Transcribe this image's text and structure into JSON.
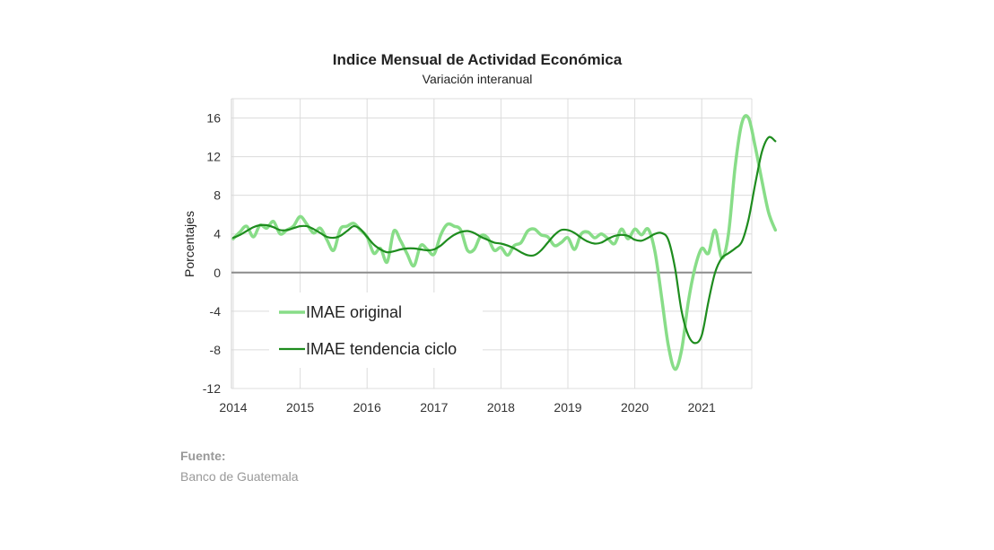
{
  "chart_data": {
    "type": "line",
    "title": "Indice Mensual de Actividad Económica",
    "subtitle": "Variación interanual",
    "ylabel": "Porcentajes",
    "xlabel": "",
    "ylim": [
      -12,
      18
    ],
    "xlim": [
      2014.0,
      2021.75
    ],
    "yticks": [
      16,
      12,
      8,
      4,
      0,
      -4,
      -8,
      -12
    ],
    "xticks": [
      "2014",
      "2015",
      "2016",
      "2017",
      "2018",
      "2019",
      "2020",
      "2021"
    ],
    "grid": true,
    "legend_position": "bottom-left",
    "series": [
      {
        "name": "IMAE original",
        "color": "#88dd88",
        "points": [
          [
            2014.0,
            3.5
          ],
          [
            2014.1,
            4.2
          ],
          [
            2014.2,
            4.8
          ],
          [
            2014.3,
            3.7
          ],
          [
            2014.4,
            4.9
          ],
          [
            2014.5,
            4.6
          ],
          [
            2014.6,
            5.3
          ],
          [
            2014.7,
            4.0
          ],
          [
            2014.8,
            4.4
          ],
          [
            2014.9,
            4.8
          ],
          [
            2015.0,
            5.8
          ],
          [
            2015.1,
            5.0
          ],
          [
            2015.2,
            4.1
          ],
          [
            2015.3,
            4.6
          ],
          [
            2015.4,
            3.4
          ],
          [
            2015.5,
            2.3
          ],
          [
            2015.6,
            4.5
          ],
          [
            2015.7,
            4.8
          ],
          [
            2015.8,
            5.1
          ],
          [
            2015.9,
            4.4
          ],
          [
            2016.0,
            3.7
          ],
          [
            2016.1,
            2.0
          ],
          [
            2016.2,
            2.5
          ],
          [
            2016.3,
            1.1
          ],
          [
            2016.4,
            4.3
          ],
          [
            2016.5,
            3.3
          ],
          [
            2016.6,
            1.9
          ],
          [
            2016.7,
            0.7
          ],
          [
            2016.8,
            2.8
          ],
          [
            2016.9,
            2.4
          ],
          [
            2017.0,
            1.9
          ],
          [
            2017.1,
            3.9
          ],
          [
            2017.2,
            5.0
          ],
          [
            2017.3,
            4.8
          ],
          [
            2017.4,
            4.4
          ],
          [
            2017.5,
            2.3
          ],
          [
            2017.6,
            2.4
          ],
          [
            2017.7,
            3.8
          ],
          [
            2017.8,
            3.6
          ],
          [
            2017.9,
            2.3
          ],
          [
            2018.0,
            2.6
          ],
          [
            2018.1,
            1.8
          ],
          [
            2018.2,
            2.8
          ],
          [
            2018.3,
            3.1
          ],
          [
            2018.4,
            4.3
          ],
          [
            2018.5,
            4.5
          ],
          [
            2018.6,
            3.9
          ],
          [
            2018.7,
            3.7
          ],
          [
            2018.8,
            2.8
          ],
          [
            2018.9,
            3.1
          ],
          [
            2019.0,
            3.6
          ],
          [
            2019.1,
            2.4
          ],
          [
            2019.2,
            4.0
          ],
          [
            2019.3,
            4.2
          ],
          [
            2019.4,
            3.6
          ],
          [
            2019.5,
            4.0
          ],
          [
            2019.6,
            3.5
          ],
          [
            2019.7,
            3.0
          ],
          [
            2019.8,
            4.5
          ],
          [
            2019.9,
            3.5
          ],
          [
            2020.0,
            4.5
          ],
          [
            2020.1,
            3.9
          ],
          [
            2020.2,
            4.5
          ],
          [
            2020.3,
            2.2
          ],
          [
            2020.4,
            -2.5
          ],
          [
            2020.5,
            -7.5
          ],
          [
            2020.6,
            -10.0
          ],
          [
            2020.7,
            -8.0
          ],
          [
            2020.8,
            -3.0
          ],
          [
            2020.9,
            0.5
          ],
          [
            2021.0,
            2.5
          ],
          [
            2021.1,
            2.0
          ],
          [
            2021.2,
            4.4
          ],
          [
            2021.3,
            1.5
          ],
          [
            2021.4,
            4.0
          ],
          [
            2021.5,
            11.0
          ],
          [
            2021.6,
            15.5
          ],
          [
            2021.7,
            16.0
          ],
          [
            2021.8,
            13.0
          ],
          [
            2021.9,
            9.5
          ],
          [
            2022.0,
            6.2
          ],
          [
            2022.1,
            4.4
          ]
        ]
      },
      {
        "name": "IMAE tendencia ciclo",
        "color": "#1e8c1e",
        "points": [
          [
            2014.0,
            3.6
          ],
          [
            2014.1,
            3.9
          ],
          [
            2014.2,
            4.3
          ],
          [
            2014.3,
            4.7
          ],
          [
            2014.4,
            4.9
          ],
          [
            2014.5,
            4.9
          ],
          [
            2014.6,
            4.7
          ],
          [
            2014.7,
            4.4
          ],
          [
            2014.8,
            4.4
          ],
          [
            2014.9,
            4.6
          ],
          [
            2015.0,
            4.8
          ],
          [
            2015.1,
            4.8
          ],
          [
            2015.2,
            4.5
          ],
          [
            2015.3,
            4.1
          ],
          [
            2015.4,
            3.7
          ],
          [
            2015.5,
            3.6
          ],
          [
            2015.6,
            3.8
          ],
          [
            2015.7,
            4.3
          ],
          [
            2015.8,
            4.8
          ],
          [
            2015.9,
            4.5
          ],
          [
            2016.0,
            3.7
          ],
          [
            2016.1,
            2.9
          ],
          [
            2016.2,
            2.4
          ],
          [
            2016.3,
            2.1
          ],
          [
            2016.4,
            2.2
          ],
          [
            2016.5,
            2.4
          ],
          [
            2016.6,
            2.5
          ],
          [
            2016.7,
            2.5
          ],
          [
            2016.8,
            2.4
          ],
          [
            2016.9,
            2.3
          ],
          [
            2017.0,
            2.4
          ],
          [
            2017.1,
            2.8
          ],
          [
            2017.2,
            3.4
          ],
          [
            2017.3,
            3.9
          ],
          [
            2017.4,
            4.2
          ],
          [
            2017.5,
            4.3
          ],
          [
            2017.6,
            4.1
          ],
          [
            2017.7,
            3.7
          ],
          [
            2017.8,
            3.4
          ],
          [
            2017.9,
            3.1
          ],
          [
            2018.0,
            3.0
          ],
          [
            2018.1,
            2.8
          ],
          [
            2018.2,
            2.5
          ],
          [
            2018.3,
            2.1
          ],
          [
            2018.4,
            1.8
          ],
          [
            2018.5,
            1.8
          ],
          [
            2018.6,
            2.3
          ],
          [
            2018.7,
            3.1
          ],
          [
            2018.8,
            3.9
          ],
          [
            2018.9,
            4.4
          ],
          [
            2019.0,
            4.4
          ],
          [
            2019.1,
            4.1
          ],
          [
            2019.2,
            3.6
          ],
          [
            2019.3,
            3.2
          ],
          [
            2019.4,
            3.0
          ],
          [
            2019.5,
            3.1
          ],
          [
            2019.6,
            3.5
          ],
          [
            2019.7,
            3.8
          ],
          [
            2019.8,
            3.9
          ],
          [
            2019.9,
            3.8
          ],
          [
            2020.0,
            3.4
          ],
          [
            2020.1,
            3.3
          ],
          [
            2020.2,
            3.6
          ],
          [
            2020.3,
            4.0
          ],
          [
            2020.4,
            4.1
          ],
          [
            2020.5,
            3.4
          ],
          [
            2020.6,
            0.5
          ],
          [
            2020.7,
            -4.0
          ],
          [
            2020.8,
            -6.5
          ],
          [
            2020.9,
            -7.3
          ],
          [
            2021.0,
            -6.5
          ],
          [
            2021.1,
            -3.0
          ],
          [
            2021.2,
            0.0
          ],
          [
            2021.3,
            1.5
          ],
          [
            2021.4,
            2.0
          ],
          [
            2021.5,
            2.5
          ],
          [
            2021.6,
            3.2
          ],
          [
            2021.7,
            5.5
          ],
          [
            2021.8,
            9.2
          ],
          [
            2021.9,
            12.5
          ],
          [
            2022.0,
            14.0
          ],
          [
            2022.1,
            13.6
          ]
        ]
      }
    ]
  },
  "source": {
    "label": "Fuente:",
    "text": "Banco de Guatemala"
  }
}
